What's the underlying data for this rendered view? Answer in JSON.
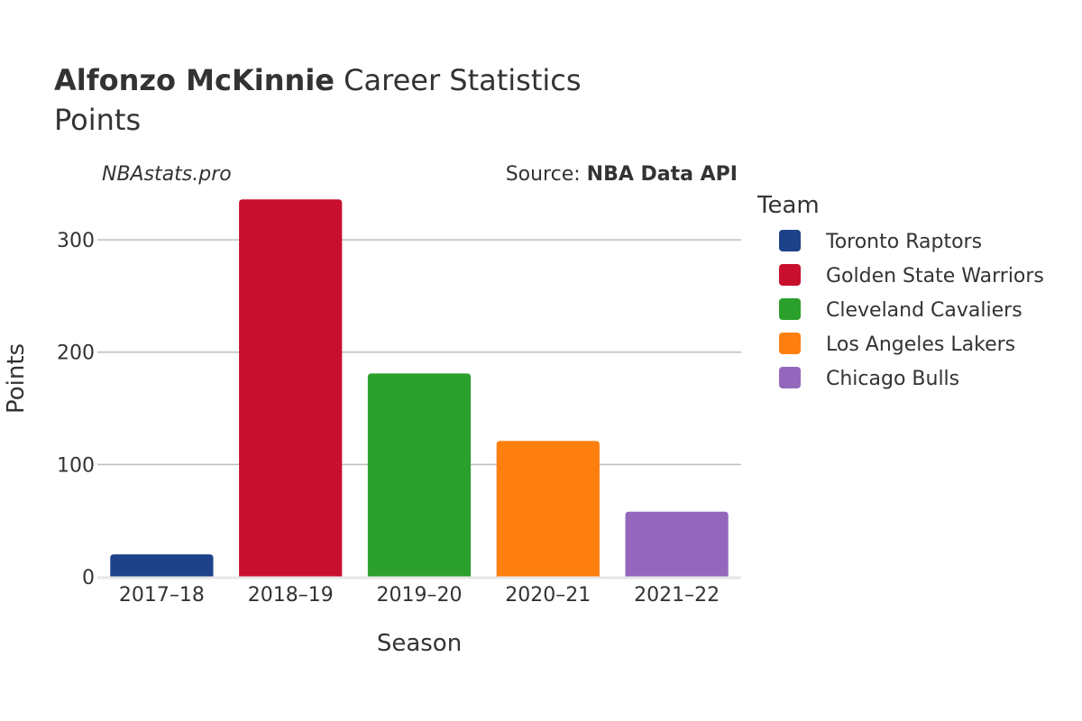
{
  "title": {
    "player": "Alfonzo McKinnie",
    "rest": " Career Statistics",
    "subtitle": "Points"
  },
  "watermark": "NBAstats.pro",
  "source": {
    "prefix": "Source: ",
    "name": "NBA Data API"
  },
  "legend": {
    "title": "Team",
    "position": "right"
  },
  "chart_data": {
    "type": "bar",
    "xlabel": "Season",
    "ylabel": "Points",
    "ylim": [
      0,
      345
    ],
    "yticks": [
      0,
      100,
      200,
      300
    ],
    "grid": true,
    "categories": [
      "2017–18",
      "2018–19",
      "2019–20",
      "2020–21",
      "2021–22"
    ],
    "series": [
      {
        "name": "Toronto Raptors",
        "color": "#1d428a",
        "category": "2017–18",
        "value": 20
      },
      {
        "name": "Golden State Warriors",
        "color": "#c8102e",
        "category": "2018–19",
        "value": 336
      },
      {
        "name": "Cleveland Cavaliers",
        "color": "#2ca02c",
        "category": "2019–20",
        "value": 181
      },
      {
        "name": "Los Angeles Lakers",
        "color": "#ff7f0e",
        "category": "2020–21",
        "value": 121
      },
      {
        "name": "Chicago Bulls",
        "color": "#9467bd",
        "category": "2021–22",
        "value": 58
      }
    ]
  }
}
